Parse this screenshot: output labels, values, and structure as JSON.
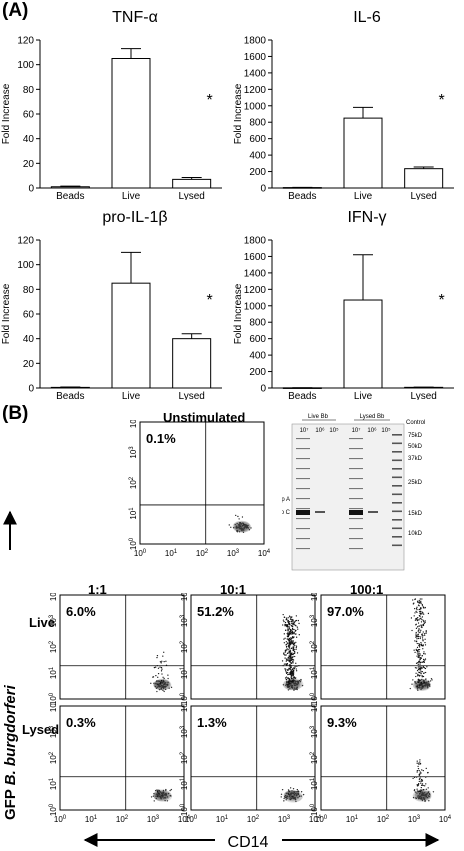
{
  "panel_a": {
    "label": "(A)",
    "charts": [
      {
        "type": "bar",
        "title": "TNF-α",
        "ylabel": "Fold Increase",
        "categories": [
          "Beads",
          "Live",
          "Lysed"
        ],
        "values": [
          1,
          105,
          7
        ],
        "errors": [
          0.5,
          8,
          1.5
        ],
        "ylim": [
          0,
          120
        ],
        "yticks": [
          0,
          20,
          40,
          60,
          80,
          100,
          120
        ],
        "significance": "*",
        "sig_category": "Lysed"
      },
      {
        "type": "bar",
        "title": "IL-6",
        "ylabel": "Fold Increase",
        "categories": [
          "Beads",
          "Live",
          "Lysed"
        ],
        "values": [
          5,
          850,
          235
        ],
        "errors": [
          2,
          130,
          20
        ],
        "ylim": [
          0,
          1800
        ],
        "yticks": [
          0,
          200,
          400,
          600,
          800,
          1000,
          1200,
          1400,
          1600,
          1800
        ],
        "significance": "*",
        "sig_category": "Lysed"
      },
      {
        "type": "bar",
        "title": "pro-IL-1β",
        "ylabel": "Fold Increase",
        "categories": [
          "Beads",
          "Live",
          "Lysed"
        ],
        "values": [
          0.5,
          85,
          40
        ],
        "errors": [
          0.3,
          25,
          4
        ],
        "ylim": [
          0,
          120
        ],
        "yticks": [
          0,
          20,
          40,
          60,
          80,
          100,
          120
        ],
        "significance": "*",
        "sig_category": "Lysed"
      },
      {
        "type": "bar",
        "title": "IFN-γ",
        "ylabel": "Fold Increase",
        "categories": [
          "Beads",
          "Live",
          "Lysed"
        ],
        "values": [
          2,
          1070,
          8
        ],
        "errors": [
          1,
          550,
          2
        ],
        "ylim": [
          0,
          1800
        ],
        "yticks": [
          0,
          200,
          400,
          600,
          800,
          1000,
          1200,
          1400,
          1600,
          1800
        ],
        "significance": "*",
        "sig_category": "Lysed"
      }
    ]
  },
  "panel_b": {
    "label": "(B)",
    "unstimulated": {
      "title": "Unstimulated",
      "percent": "0.1%"
    },
    "gel": {
      "group_labels": [
        "Live Bb",
        "Lysed Bb",
        "Control"
      ],
      "lane_labels": [
        "10⁷",
        "10⁶",
        "10⁵",
        "10⁷",
        "10⁶",
        "10⁵"
      ],
      "markers": [
        "75kD",
        "50kD",
        "37kD",
        "25kD",
        "15kD",
        "10kD"
      ],
      "bands": [
        "Osp A",
        "Osp C"
      ]
    },
    "ratios": [
      "1:1",
      "10:1",
      "100:1"
    ],
    "rows": [
      {
        "label": "Live",
        "percents": [
          "6.0%",
          "51.2%",
          "97.0%"
        ]
      },
      {
        "label": "Lysed",
        "percents": [
          "0.3%",
          "1.3%",
          "9.3%"
        ]
      }
    ],
    "y_axis_label": {
      "prefix": "GFP ",
      "italic": "B. burgdorferi"
    },
    "x_axis_label": "CD14",
    "decade_labels": [
      "0",
      "1",
      "2",
      "3",
      "4"
    ]
  }
}
